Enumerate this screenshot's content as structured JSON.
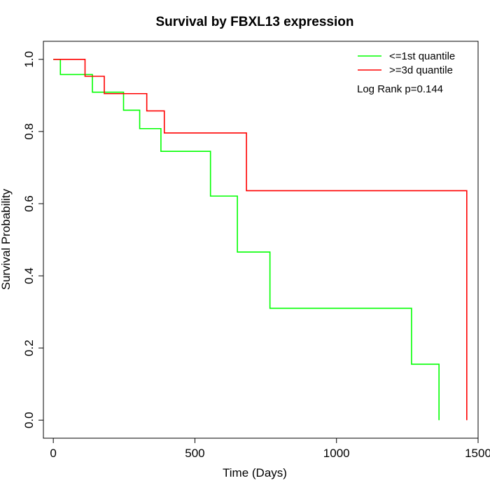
{
  "chart_data": {
    "type": "line",
    "step": true,
    "title": "Survival by FBXL13 expression",
    "xlabel": "Time (Days)",
    "ylabel": "Survival Probability",
    "xlim": [
      -35,
      1500
    ],
    "ylim": [
      -0.05,
      1.05
    ],
    "xticks": [
      0,
      500,
      1000,
      1500
    ],
    "xtick_labels": [
      "0",
      "500",
      "1000",
      "1500"
    ],
    "yticks": [
      0.0,
      0.2,
      0.4,
      0.6,
      0.8,
      1.0
    ],
    "ytick_labels": [
      "0.0",
      "0.2",
      "0.4",
      "0.6",
      "0.8",
      "1.0"
    ],
    "grid": false,
    "legend_position": "top-right",
    "annotation": "Log Rank p=0.144",
    "series": [
      {
        "name": "<=1st quantile",
        "color": "#00ff00",
        "x": [
          0,
          25,
          138,
          248,
          305,
          380,
          555,
          650,
          765,
          1265,
          1362
        ],
        "y": [
          1.0,
          0.958,
          0.909,
          0.859,
          0.808,
          0.745,
          0.621,
          0.466,
          0.31,
          0.155,
          0.0
        ]
      },
      {
        "name": ">=3d quantile",
        "color": "#ff0000",
        "x": [
          0,
          112,
          180,
          330,
          392,
          682,
          1460
        ],
        "y": [
          1.0,
          0.953,
          0.905,
          0.857,
          0.796,
          0.636,
          0.0
        ]
      }
    ]
  }
}
